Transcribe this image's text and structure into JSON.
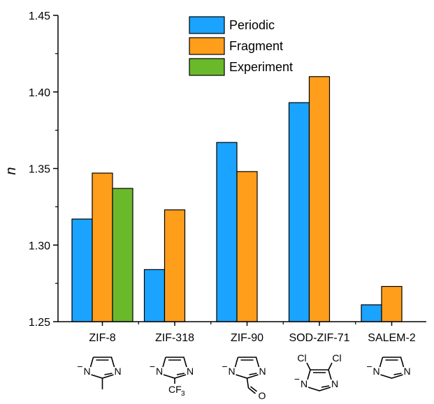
{
  "chart_data": {
    "type": "bar",
    "categories": [
      "ZIF-8",
      "ZIF-318",
      "ZIF-90",
      "SOD-ZIF-71",
      "SALEM-2"
    ],
    "series": [
      {
        "name": "Periodic",
        "color": "#1aa3ff",
        "values": [
          1.317,
          1.284,
          1.367,
          1.393,
          1.261
        ]
      },
      {
        "name": "Fragment",
        "color": "#ff9e1b",
        "values": [
          1.347,
          1.323,
          1.348,
          1.41,
          1.273
        ]
      },
      {
        "name": "Experiment",
        "color": "#6ab92a",
        "values": [
          1.337,
          null,
          null,
          null,
          null
        ]
      }
    ],
    "ylabel": "n",
    "xlabel": "",
    "ylim": [
      1.25,
      1.45
    ],
    "yticks": [
      "1.25",
      "1.30",
      "1.35",
      "1.40",
      "1.45"
    ],
    "legend_position": "top-center",
    "grid": false
  },
  "molecules": [
    {
      "category": "ZIF-8",
      "charge": "−",
      "n_label": "N",
      "substituent": "methyl"
    },
    {
      "category": "ZIF-318",
      "charge": "−",
      "n_label": "N",
      "substituent": "CF",
      "substituent_sub": "3"
    },
    {
      "category": "ZIF-90",
      "charge": "−",
      "n_label": "N",
      "substituent": "O"
    },
    {
      "category": "SOD-ZIF-71",
      "charge": "−",
      "n_label": "N",
      "substituent": "Cl"
    },
    {
      "category": "SALEM-2",
      "charge": "−",
      "n_label": "N",
      "substituent": ""
    }
  ]
}
